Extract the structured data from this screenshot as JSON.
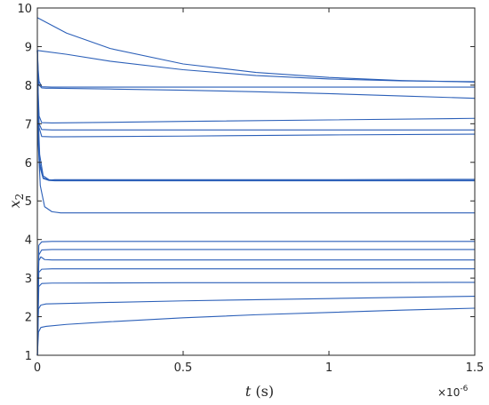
{
  "chart_data": {
    "type": "line",
    "title": "",
    "xlabel_var": "t",
    "xlabel_unit": "(s)",
    "ylabel_var": "x",
    "ylabel_sub": "2",
    "x_exponent_base": "×10",
    "x_exponent_power": "-6",
    "xlim": [
      0,
      1.5
    ],
    "ylim": [
      1,
      10
    ],
    "x_ticks": [
      0,
      0.5,
      1,
      1.5
    ],
    "x_tick_labels": [
      "0",
      "0.5",
      "1",
      "1.5"
    ],
    "y_ticks": [
      1,
      2,
      3,
      4,
      5,
      6,
      7,
      8,
      9,
      10
    ],
    "y_tick_labels": [
      "1",
      "2",
      "3",
      "4",
      "5",
      "6",
      "7",
      "8",
      "9",
      "10"
    ],
    "grid": false,
    "line_color": "#2b5fb8",
    "series": [
      {
        "x": [
          0,
          0.1,
          0.25,
          0.5,
          0.75,
          1.0,
          1.25,
          1.5
        ],
        "y": [
          9.75,
          9.35,
          8.95,
          8.55,
          8.33,
          8.2,
          8.12,
          8.08
        ]
      },
      {
        "x": [
          0,
          0.1,
          0.25,
          0.5,
          0.75,
          1.0,
          1.25,
          1.5
        ],
        "y": [
          8.9,
          8.8,
          8.62,
          8.4,
          8.25,
          8.16,
          8.11,
          8.09
        ]
      },
      {
        "x": [
          0,
          0.003,
          0.006,
          0.015,
          0.03,
          0.05,
          0.25,
          0.5,
          0.75,
          1.0,
          1.25,
          1.5
        ],
        "y": [
          8.9,
          8.3,
          8.0,
          7.93,
          7.92,
          7.92,
          7.9,
          7.87,
          7.83,
          7.78,
          7.72,
          7.66
        ]
      },
      {
        "x": [
          0,
          0.003,
          0.006,
          0.015,
          0.05,
          0.5,
          1.0,
          1.5
        ],
        "y": [
          8.9,
          8.4,
          8.1,
          7.96,
          7.95,
          7.95,
          7.95,
          7.95
        ]
      },
      {
        "x": [
          0,
          0.003,
          0.006,
          0.015,
          0.05,
          0.5,
          1.0,
          1.5
        ],
        "y": [
          8.9,
          7.8,
          7.2,
          7.03,
          7.02,
          7.06,
          7.1,
          7.14
        ]
      },
      {
        "x": [
          0,
          0.003,
          0.006,
          0.015,
          0.05,
          0.5,
          1.0,
          1.5
        ],
        "y": [
          8.9,
          7.6,
          7.0,
          6.85,
          6.84,
          6.84,
          6.84,
          6.84
        ]
      },
      {
        "x": [
          0,
          0.003,
          0.006,
          0.015,
          0.05,
          0.5,
          1.0,
          1.5
        ],
        "y": [
          8.9,
          7.4,
          6.9,
          6.67,
          6.66,
          6.68,
          6.71,
          6.73
        ]
      },
      {
        "x": [
          0,
          0.003,
          0.008,
          0.02,
          0.04,
          0.06,
          0.5,
          1.0,
          1.5
        ],
        "y": [
          8.9,
          7.2,
          6.2,
          5.65,
          5.55,
          5.53,
          5.53,
          5.53,
          5.53
        ]
      },
      {
        "x": [
          0,
          0.003,
          0.008,
          0.02,
          0.04,
          0.06,
          0.5,
          1.0,
          1.5
        ],
        "y": [
          8.9,
          7.0,
          6.0,
          5.6,
          5.54,
          5.55,
          5.55,
          5.55,
          5.56
        ]
      },
      {
        "x": [
          0,
          0.003,
          0.008,
          0.02,
          0.04,
          0.06,
          0.5,
          1.0,
          1.5
        ],
        "y": [
          8.9,
          6.8,
          5.9,
          5.58,
          5.53,
          5.52,
          5.52,
          5.52,
          5.52
        ]
      },
      {
        "x": [
          0,
          0.003,
          0.01,
          0.025,
          0.05,
          0.08,
          0.5,
          1.0,
          1.5
        ],
        "y": [
          8.9,
          6.5,
          5.4,
          4.85,
          4.72,
          4.69,
          4.69,
          4.69,
          4.69
        ]
      },
      {
        "x": [
          0,
          0.005,
          0.015,
          0.05,
          0.5,
          1.0,
          1.5
        ],
        "y": [
          1.0,
          3.85,
          3.94,
          3.95,
          3.95,
          3.95,
          3.95
        ]
      },
      {
        "x": [
          0,
          0.005,
          0.015,
          0.05,
          0.5,
          1.0,
          1.5
        ],
        "y": [
          1.0,
          3.6,
          3.73,
          3.74,
          3.74,
          3.74,
          3.74
        ]
      },
      {
        "x": [
          0,
          0.005,
          0.012,
          0.025,
          0.05,
          0.5,
          1.0,
          1.5
        ],
        "y": [
          1.0,
          3.45,
          3.55,
          3.48,
          3.47,
          3.47,
          3.47,
          3.47
        ]
      },
      {
        "x": [
          0,
          0.005,
          0.015,
          0.05,
          0.5,
          1.0,
          1.5
        ],
        "y": [
          1.0,
          3.15,
          3.23,
          3.24,
          3.24,
          3.24,
          3.24
        ]
      },
      {
        "x": [
          0,
          0.005,
          0.015,
          0.05,
          0.5,
          1.0,
          1.5
        ],
        "y": [
          1.0,
          2.78,
          2.86,
          2.87,
          2.88,
          2.88,
          2.89
        ]
      },
      {
        "x": [
          0,
          0.004,
          0.012,
          0.03,
          0.25,
          0.5,
          0.75,
          1.0,
          1.25,
          1.5
        ],
        "y": [
          1.0,
          2.2,
          2.3,
          2.33,
          2.37,
          2.41,
          2.44,
          2.47,
          2.5,
          2.53
        ]
      },
      {
        "x": [
          0,
          0.004,
          0.012,
          0.03,
          0.1,
          0.25,
          0.5,
          0.75,
          1.0,
          1.25,
          1.5
        ],
        "y": [
          1.0,
          1.6,
          1.72,
          1.75,
          1.8,
          1.87,
          1.97,
          2.05,
          2.11,
          2.17,
          2.22
        ]
      }
    ]
  }
}
